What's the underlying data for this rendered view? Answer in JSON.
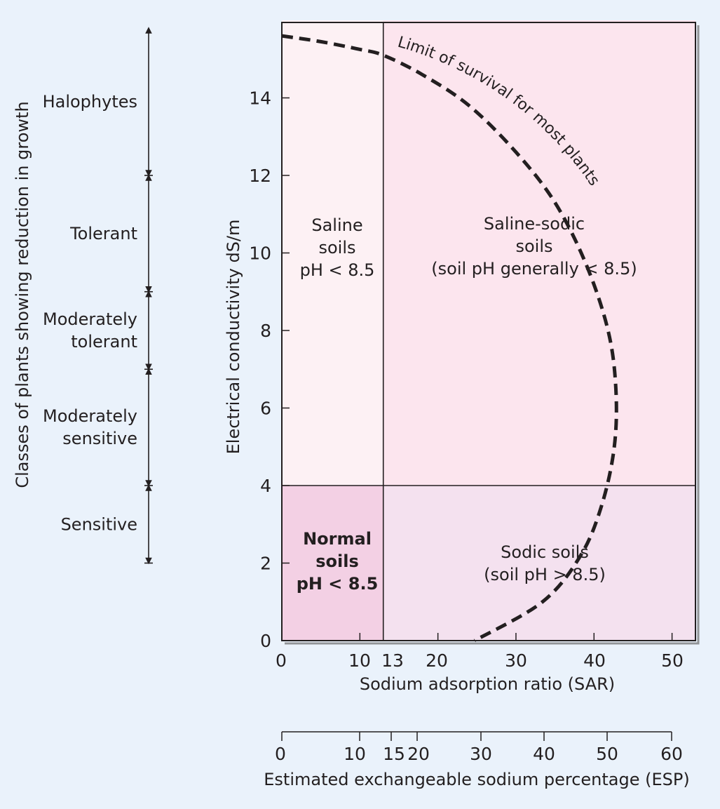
{
  "chart_data": {
    "type": "line",
    "y_axis": {
      "label": "Electrical conductivity dS/m",
      "ylim": [
        0,
        16
      ],
      "ticks": [
        0,
        2,
        4,
        6,
        8,
        10,
        12,
        14
      ]
    },
    "x_axis": {
      "label": "Sodium adsorption ratio (SAR)",
      "xlim": [
        0,
        53
      ],
      "ticks": [
        0,
        10,
        13,
        20,
        30,
        40,
        50
      ],
      "tick_labels": [
        "0",
        "10",
        "13",
        "20",
        "30",
        "40",
        "50"
      ]
    },
    "secondary_x_axis": {
      "label": "Estimated exchangeable sodium percentage (ESP)",
      "ticks": [
        0,
        10,
        15,
        20,
        30,
        40,
        50,
        60
      ],
      "tick_labels": [
        "0",
        "10",
        "15",
        "20",
        "30",
        "40",
        "50",
        "60"
      ]
    },
    "thresholds": {
      "sar": 13,
      "ec": 4
    },
    "regions": [
      {
        "name": "saline",
        "lines": [
          "Saline",
          "soils",
          "pH < 8.5"
        ],
        "sar": [
          0,
          13
        ],
        "ec": [
          4,
          16
        ],
        "color": "#fdf1f4",
        "bold": false
      },
      {
        "name": "saline-sodic",
        "lines": [
          "Saline-sodic",
          "soils",
          "(soil pH generally < 8.5)"
        ],
        "sar": [
          13,
          53
        ],
        "ec": [
          4,
          16
        ],
        "color": "#fce5ee",
        "bold": false
      },
      {
        "name": "normal",
        "lines": [
          "Normal",
          "soils",
          "pH < 8.5"
        ],
        "sar": [
          0,
          13
        ],
        "ec": [
          0,
          4
        ],
        "color": "#f3d0e4",
        "bold": true
      },
      {
        "name": "sodic",
        "lines": [
          "Sodic soils",
          "(soil pH > 8.5)"
        ],
        "sar": [
          13,
          53
        ],
        "ec": [
          0,
          4
        ],
        "color": "#f4e1ef",
        "bold": false
      }
    ],
    "survival_curve": {
      "label": "Limit of survival for most plants",
      "style": "dashed",
      "points": [
        [
          0,
          15.6
        ],
        [
          5,
          15.45
        ],
        [
          10,
          15.25
        ],
        [
          13,
          15.1
        ],
        [
          18,
          14.6
        ],
        [
          24,
          13.8
        ],
        [
          30,
          12.6
        ],
        [
          35,
          11.3
        ],
        [
          39,
          9.7
        ],
        [
          41.8,
          8.0
        ],
        [
          42.8,
          6.5
        ],
        [
          42.6,
          5.0
        ],
        [
          41.0,
          3.5
        ],
        [
          38.3,
          2.2
        ],
        [
          33.4,
          1.0
        ],
        [
          24.7,
          0.0
        ]
      ]
    },
    "plant_classes": {
      "title": "Classes of plants showing reduction in growth",
      "items": [
        {
          "label": [
            "Halophytes"
          ],
          "ec_range": [
            12,
            16
          ]
        },
        {
          "label": [
            "Tolerant"
          ],
          "ec_range": [
            9,
            12
          ]
        },
        {
          "label": [
            "Moderately",
            "tolerant"
          ],
          "ec_range": [
            7,
            9
          ]
        },
        {
          "label": [
            "Moderately",
            "sensitive"
          ],
          "ec_range": [
            4,
            7
          ]
        },
        {
          "label": [
            "Sensitive"
          ],
          "ec_range": [
            2,
            4
          ]
        }
      ]
    }
  }
}
